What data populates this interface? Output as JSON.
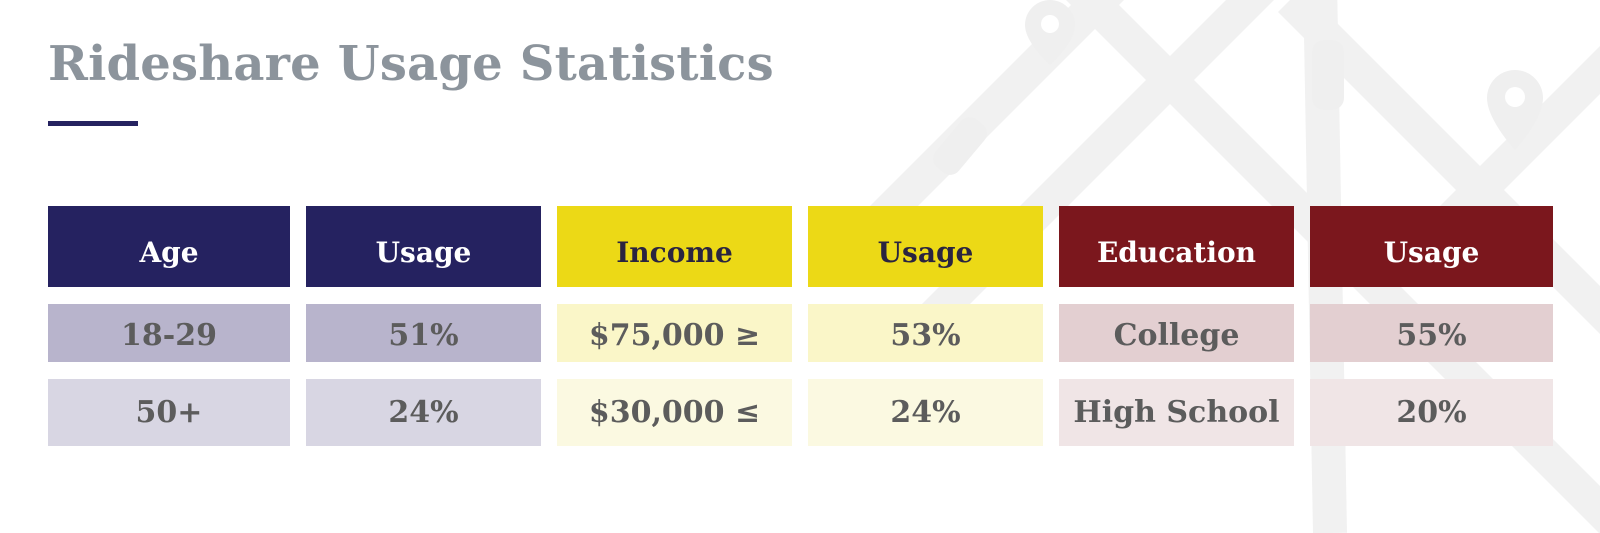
{
  "title": "Rideshare Usage Statistics",
  "colors": {
    "age_header": "#252260",
    "age_row1": "#b8b4cc",
    "age_row2": "#d8d6e3",
    "income_header": "#ecd916",
    "income_row1": "#faf6c8",
    "income_row2": "#fbf9e1",
    "education_header": "#7b171d",
    "education_row1": "#e3cfd1",
    "education_row2": "#f0e5e6"
  },
  "table": {
    "headers": [
      "Age",
      "Usage",
      "Income",
      "Usage",
      "Education",
      "Usage"
    ],
    "rows": [
      [
        "18-29",
        "51%",
        "$75,000 ≥",
        "53%",
        "College",
        "55%"
      ],
      [
        "50+",
        "24%",
        "$30,000 ≤",
        "24%",
        "High School",
        "20%"
      ]
    ]
  }
}
